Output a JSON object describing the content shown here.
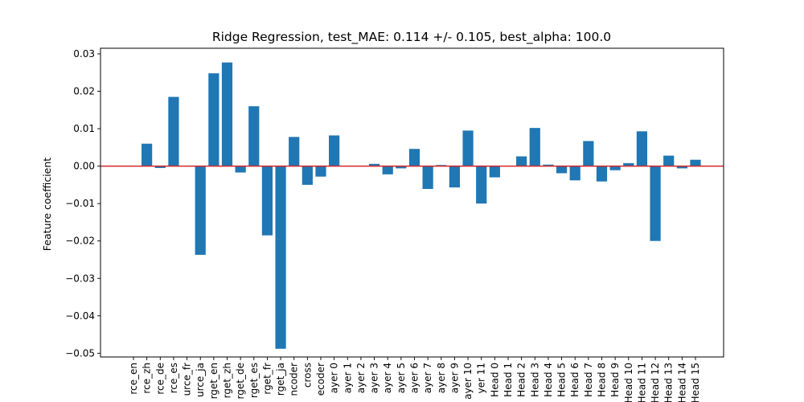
{
  "chart_data": {
    "type": "bar",
    "title": "Ridge Regression, test_MAE: 0.114 +/- 0.105, best_alpha: 100.0",
    "xlabel": "",
    "ylabel": "Feature coefficient",
    "ylim": [
      -0.051,
      0.0315
    ],
    "yticks": [
      0.03,
      0.02,
      0.01,
      0.0,
      -0.01,
      -0.02,
      -0.03,
      -0.04,
      -0.05
    ],
    "ytick_labels": [
      "0.03",
      "0.02",
      "0.01",
      "0.00",
      "−0.01",
      "−0.02",
      "−0.03",
      "−0.04",
      "−0.05"
    ],
    "bar_color": "#1f77b4",
    "baseline": {
      "y": 0,
      "color": "#d62728"
    },
    "grid": false,
    "categories": [
      "rce_en",
      "rce_zh",
      "rce_de",
      "rce_es",
      "urce_fr",
      "urce_ja",
      "rget_en",
      "rget_zh",
      "rget_de",
      "rget_es",
      "rget_fr",
      "rget_ja",
      "ncoder",
      "cross",
      "ecoder",
      "ayer 0",
      "ayer 1",
      "ayer 2",
      "ayer 3",
      "ayer 4",
      "ayer 5",
      "ayer 6",
      "ayer 7",
      "ayer 8",
      "ayer 9",
      "ayer 10",
      "yer 11",
      "Head 0",
      "Head 1",
      "Head 2",
      "Head 3",
      "Head 4",
      "Head 5",
      "Head 6",
      "Head 7",
      "Head 8",
      "Head 9",
      "Head 10",
      "Head 11",
      "Head 12",
      "Head 13",
      "Head 14",
      "Head 15"
    ],
    "values": [
      0,
      0.006,
      -0.0005,
      0.0185,
      0,
      -0.0237,
      0.0248,
      0.0277,
      -0.0017,
      0.016,
      -0.0185,
      -0.0488,
      0.0078,
      -0.005,
      -0.0028,
      0.0082,
      0,
      0,
      0.0006,
      -0.0022,
      -0.0006,
      0.0046,
      -0.0061,
      0.0003,
      -0.0057,
      0.0095,
      -0.01,
      -0.003,
      0,
      0.0026,
      0.0102,
      0.0004,
      -0.0019,
      -0.0038,
      0.0067,
      -0.0041,
      -0.0011,
      0.0008,
      0.0093,
      -0.02,
      0.0028,
      -0.0006,
      0.0017
    ]
  }
}
